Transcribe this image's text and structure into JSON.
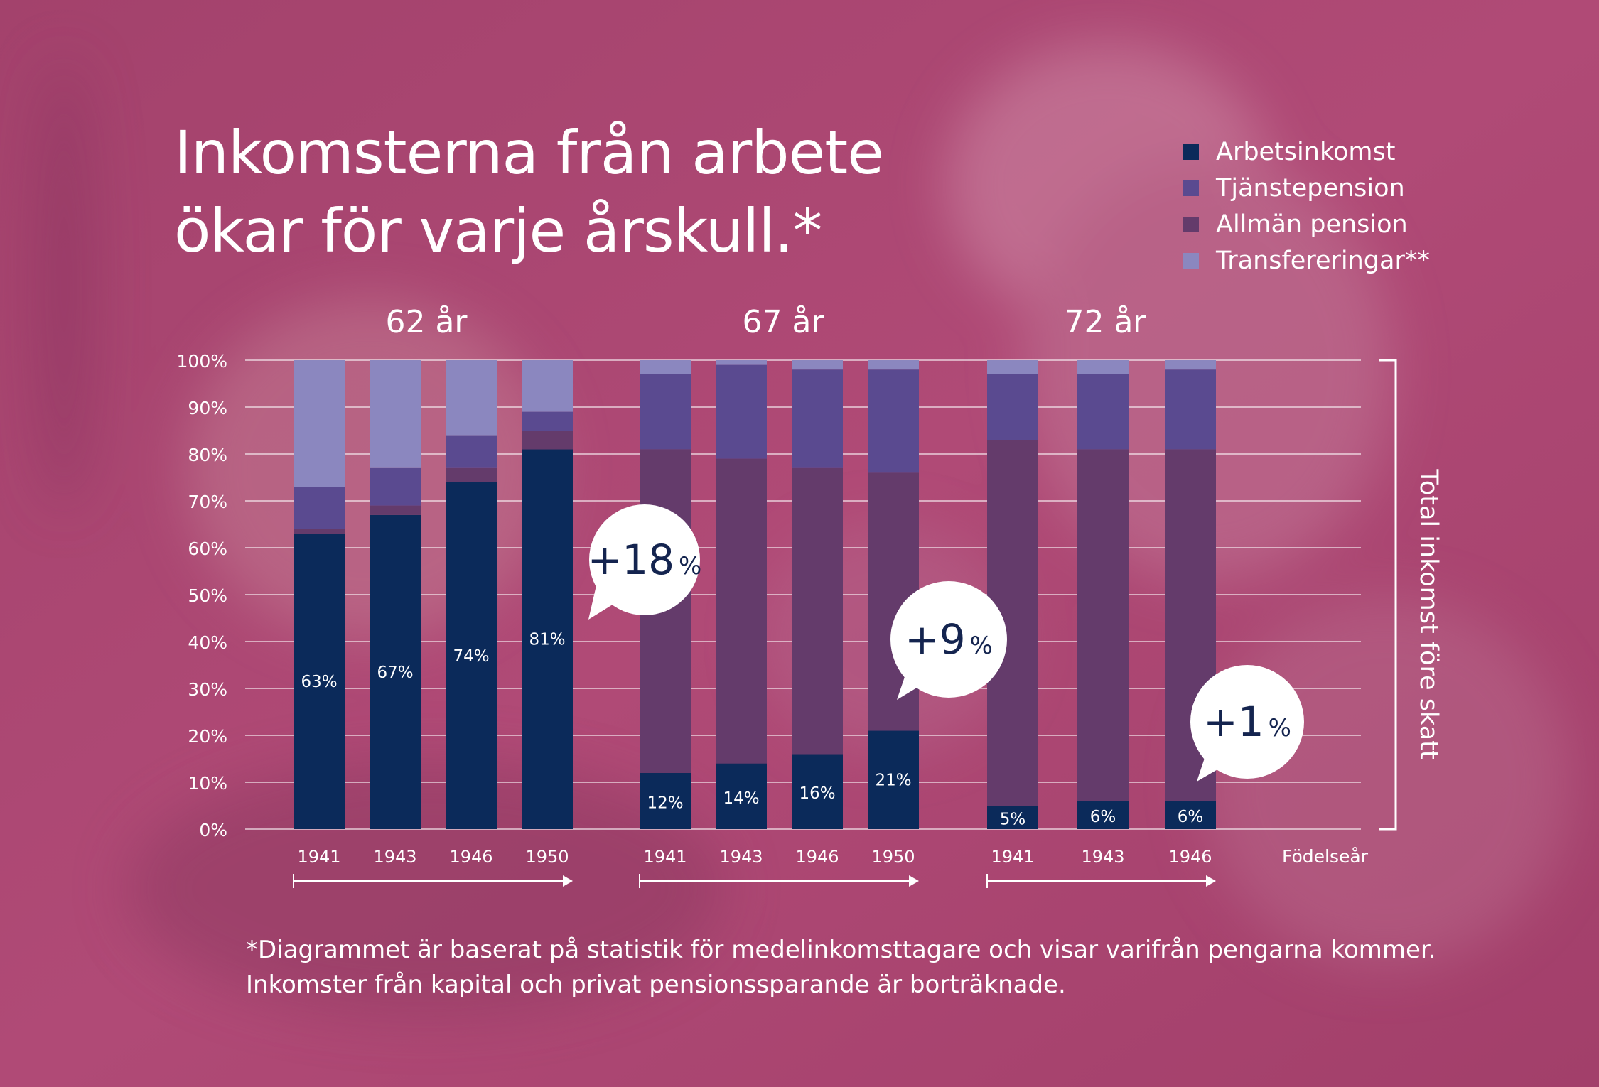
{
  "title_lines": [
    "Inkomsterna från arbete",
    "ökar för varje årskull.*"
  ],
  "legend": [
    {
      "label": "Arbetsinkomst",
      "color": "#0b2a5a"
    },
    {
      "label": "Tjänstepension",
      "color": "#5a4a90"
    },
    {
      "label": "Allmän pension",
      "color": "#643b6b"
    },
    {
      "label": "Transfereringar**",
      "color": "#8b87bf"
    }
  ],
  "side_label": "Total inkomst före skatt",
  "footnote_lines": [
    "*Diagrammet är baserat på statistik för medelinkomsttagare och visar varifrån pengarna kommer.",
    "Inkomster från kapital och privat pensionssparande är borträknade."
  ],
  "chart_data": {
    "type": "bar",
    "stacked": true,
    "ylim": [
      0,
      100
    ],
    "y_ticks": [
      "0%",
      "10%",
      "20%",
      "30%",
      "40%",
      "50%",
      "60%",
      "70%",
      "80%",
      "90%",
      "100%"
    ],
    "xlabel": "Födelseår",
    "series_names": [
      "Arbetsinkomst",
      "Allmän pension",
      "Tjänstepension",
      "Transfereringar**"
    ],
    "groups": [
      {
        "label": "62 år",
        "change_label": "+18",
        "change_unit": "%",
        "bars": [
          {
            "year": "1941",
            "arbetsinkomst": 63,
            "allman_pension": 1,
            "tjanstepension": 9,
            "transfereringar": 27,
            "label": "63%"
          },
          {
            "year": "1943",
            "arbetsinkomst": 67,
            "allman_pension": 2,
            "tjanstepension": 8,
            "transfereringar": 23,
            "label": "67%"
          },
          {
            "year": "1946",
            "arbetsinkomst": 74,
            "allman_pension": 3,
            "tjanstepension": 7,
            "transfereringar": 16,
            "label": "74%"
          },
          {
            "year": "1950",
            "arbetsinkomst": 81,
            "allman_pension": 4,
            "tjanstepension": 4,
            "transfereringar": 11,
            "label": "81%"
          }
        ]
      },
      {
        "label": "67 år",
        "change_label": "+9",
        "change_unit": "%",
        "bars": [
          {
            "year": "1941",
            "arbetsinkomst": 12,
            "allman_pension": 69,
            "tjanstepension": 16,
            "transfereringar": 3,
            "label": "12%"
          },
          {
            "year": "1943",
            "arbetsinkomst": 14,
            "allman_pension": 65,
            "tjanstepension": 20,
            "transfereringar": 1,
            "label": "14%"
          },
          {
            "year": "1946",
            "arbetsinkomst": 16,
            "allman_pension": 61,
            "tjanstepension": 21,
            "transfereringar": 2,
            "label": "16%"
          },
          {
            "year": "1950",
            "arbetsinkomst": 21,
            "allman_pension": 55,
            "tjanstepension": 22,
            "transfereringar": 2,
            "label": "21%"
          }
        ]
      },
      {
        "label": "72 år",
        "change_label": "+1",
        "change_unit": "%",
        "bars": [
          {
            "year": "1941",
            "arbetsinkomst": 5,
            "allman_pension": 78,
            "tjanstepension": 14,
            "transfereringar": 3,
            "label": "5%"
          },
          {
            "year": "1943",
            "arbetsinkomst": 6,
            "allman_pension": 75,
            "tjanstepension": 16,
            "transfereringar": 3,
            "label": "6%"
          },
          {
            "year": "1946",
            "arbetsinkomst": 6,
            "allman_pension": 75,
            "tjanstepension": 17,
            "transfereringar": 2,
            "label": "6%"
          }
        ]
      }
    ]
  }
}
